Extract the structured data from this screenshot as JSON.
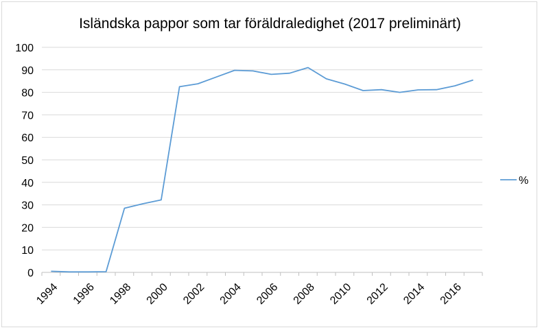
{
  "chart_data": {
    "type": "line",
    "title": "Isländska pappor som tar föräldraledighet (2017 preliminärt)",
    "xlabel": "",
    "ylabel": "",
    "ylim": [
      0,
      100
    ],
    "y_ticks": [
      0,
      10,
      20,
      30,
      40,
      50,
      60,
      70,
      80,
      90,
      100
    ],
    "x_tick_labels": [
      "1994",
      "1996",
      "1998",
      "2000",
      "2002",
      "2004",
      "2006",
      "2008",
      "2010",
      "2012",
      "2014",
      "2016"
    ],
    "x": [
      1994,
      1995,
      1996,
      1997,
      1998,
      1999,
      2000,
      2001,
      2002,
      2003,
      2004,
      2005,
      2006,
      2007,
      2008,
      2009,
      2010,
      2011,
      2012,
      2013,
      2014,
      2015,
      2016,
      2017
    ],
    "series": [
      {
        "name": "%",
        "color": "#5b9bd5",
        "values": [
          0.5,
          0.2,
          0.2,
          0.3,
          28.5,
          30.5,
          32.2,
          82.5,
          83.8,
          86.8,
          89.8,
          89.5,
          88.0,
          88.5,
          91.0,
          86.0,
          83.7,
          80.8,
          81.2,
          80.0,
          81.1,
          81.2,
          82.9,
          85.5
        ]
      }
    ],
    "grid": true,
    "legend_position": "right"
  }
}
